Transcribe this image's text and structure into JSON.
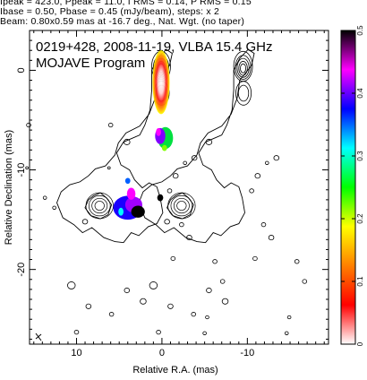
{
  "header": {
    "line1": "Ipeak = 423.0, Ppeak = 11.0, I RMS = 0.14, P RMS = 0.15",
    "line2": "Ibase = 0.50, Pbase = 0.45 (mJy/beam), steps: x 2",
    "line3": "Beam: 0.80x0.59 mas at -16.7 deg., Nat. Wgt. (no taper)"
  },
  "chart_data": {
    "type": "heatmap",
    "title_line1": "0219+428, 2008-11-19, VLBA 15.4 GHz",
    "title_line2": "MOJAVE Program",
    "xlabel": "Relative R.A. (mas)",
    "ylabel": "Relative Declination (mas)",
    "xlim": [
      15.5,
      -19.5
    ],
    "ylim": [
      -27.5,
      4
    ],
    "x_ticks": [
      10,
      0,
      -10
    ],
    "y_ticks": [
      0,
      -10,
      -20
    ],
    "colorbar": {
      "range": [
        0,
        0.5
      ],
      "ticks": [
        "0",
        "0.1",
        "0.2",
        "0.3",
        "0.4",
        "0.5"
      ],
      "colors": [
        "#ffffff",
        "#ff0000",
        "#ff8000",
        "#ffff00",
        "#00ff00",
        "#00ffff",
        "#0000ff",
        "#ff00ff",
        "#000000"
      ]
    },
    "panels": [
      {
        "name": "left",
        "offset": 0
      },
      {
        "name": "right",
        "offset": -9.6
      }
    ]
  }
}
